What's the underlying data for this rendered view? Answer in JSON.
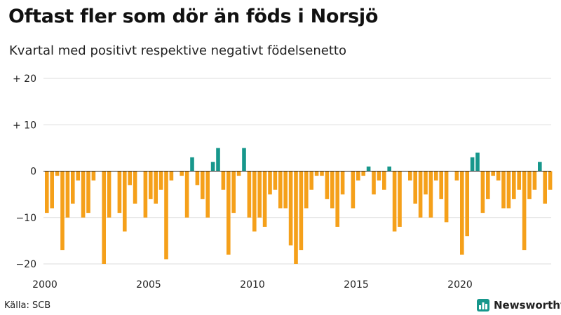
{
  "header": {
    "title": "Oftast fler som dör än föds i Norsjö",
    "subtitle": "Kvartal med positivt respektive negativt födelsenetto"
  },
  "footer": {
    "source": "Källa: SCB",
    "brand": "Newsworthy",
    "brand_icon": "bar-chart-logo-icon"
  },
  "colors": {
    "positive": "#17978c",
    "negative": "#f5a01a",
    "grid": "#dddddd",
    "zero": "#222222",
    "brand": "#17978c"
  },
  "chart_data": {
    "type": "bar",
    "title": "Oftast fler som dör än föds i Norsjö",
    "subtitle": "Kvartal med positivt respektive negativt födelsenetto",
    "xlabel": "",
    "ylabel": "",
    "ylim": [
      -20,
      20
    ],
    "yticks": [
      20,
      10,
      0,
      -10,
      -20
    ],
    "ytick_labels": [
      "+ 20",
      "+ 10",
      "0",
      "−10",
      "−20"
    ],
    "x_start_year": 2000,
    "quarters_per_year": 4,
    "xticks": [
      2000,
      2005,
      2010,
      2015,
      2020
    ],
    "xtick_labels": [
      "2000",
      "2005",
      "2010",
      "2015",
      "2020"
    ],
    "values": [
      -9,
      -8,
      -1,
      -17,
      -10,
      -7,
      -2,
      -10,
      -9,
      -2,
      0,
      -20,
      -10,
      0,
      -9,
      -13,
      -3,
      -7,
      0,
      -10,
      -6,
      -7,
      -4,
      -19,
      -2,
      0,
      -1,
      -10,
      3,
      -3,
      -6,
      -10,
      2,
      5,
      -4,
      -18,
      -9,
      -1,
      5,
      -10,
      -13,
      -10,
      -12,
      -5,
      -4,
      -8,
      -8,
      -16,
      -20,
      -17,
      -8,
      -4,
      -1,
      -1,
      -6,
      -8,
      -12,
      -5,
      0,
      -8,
      -2,
      -1,
      1,
      -5,
      -2,
      -4,
      1,
      -13,
      -12,
      0,
      -2,
      -7,
      -10,
      -5,
      -10,
      -2,
      -6,
      -11,
      0,
      -2,
      -18,
      -14,
      3,
      4,
      -9,
      -6,
      -1,
      -2,
      -8,
      -8,
      -6,
      -4,
      -17,
      -6,
      -4,
      2,
      -7,
      -4
    ]
  }
}
